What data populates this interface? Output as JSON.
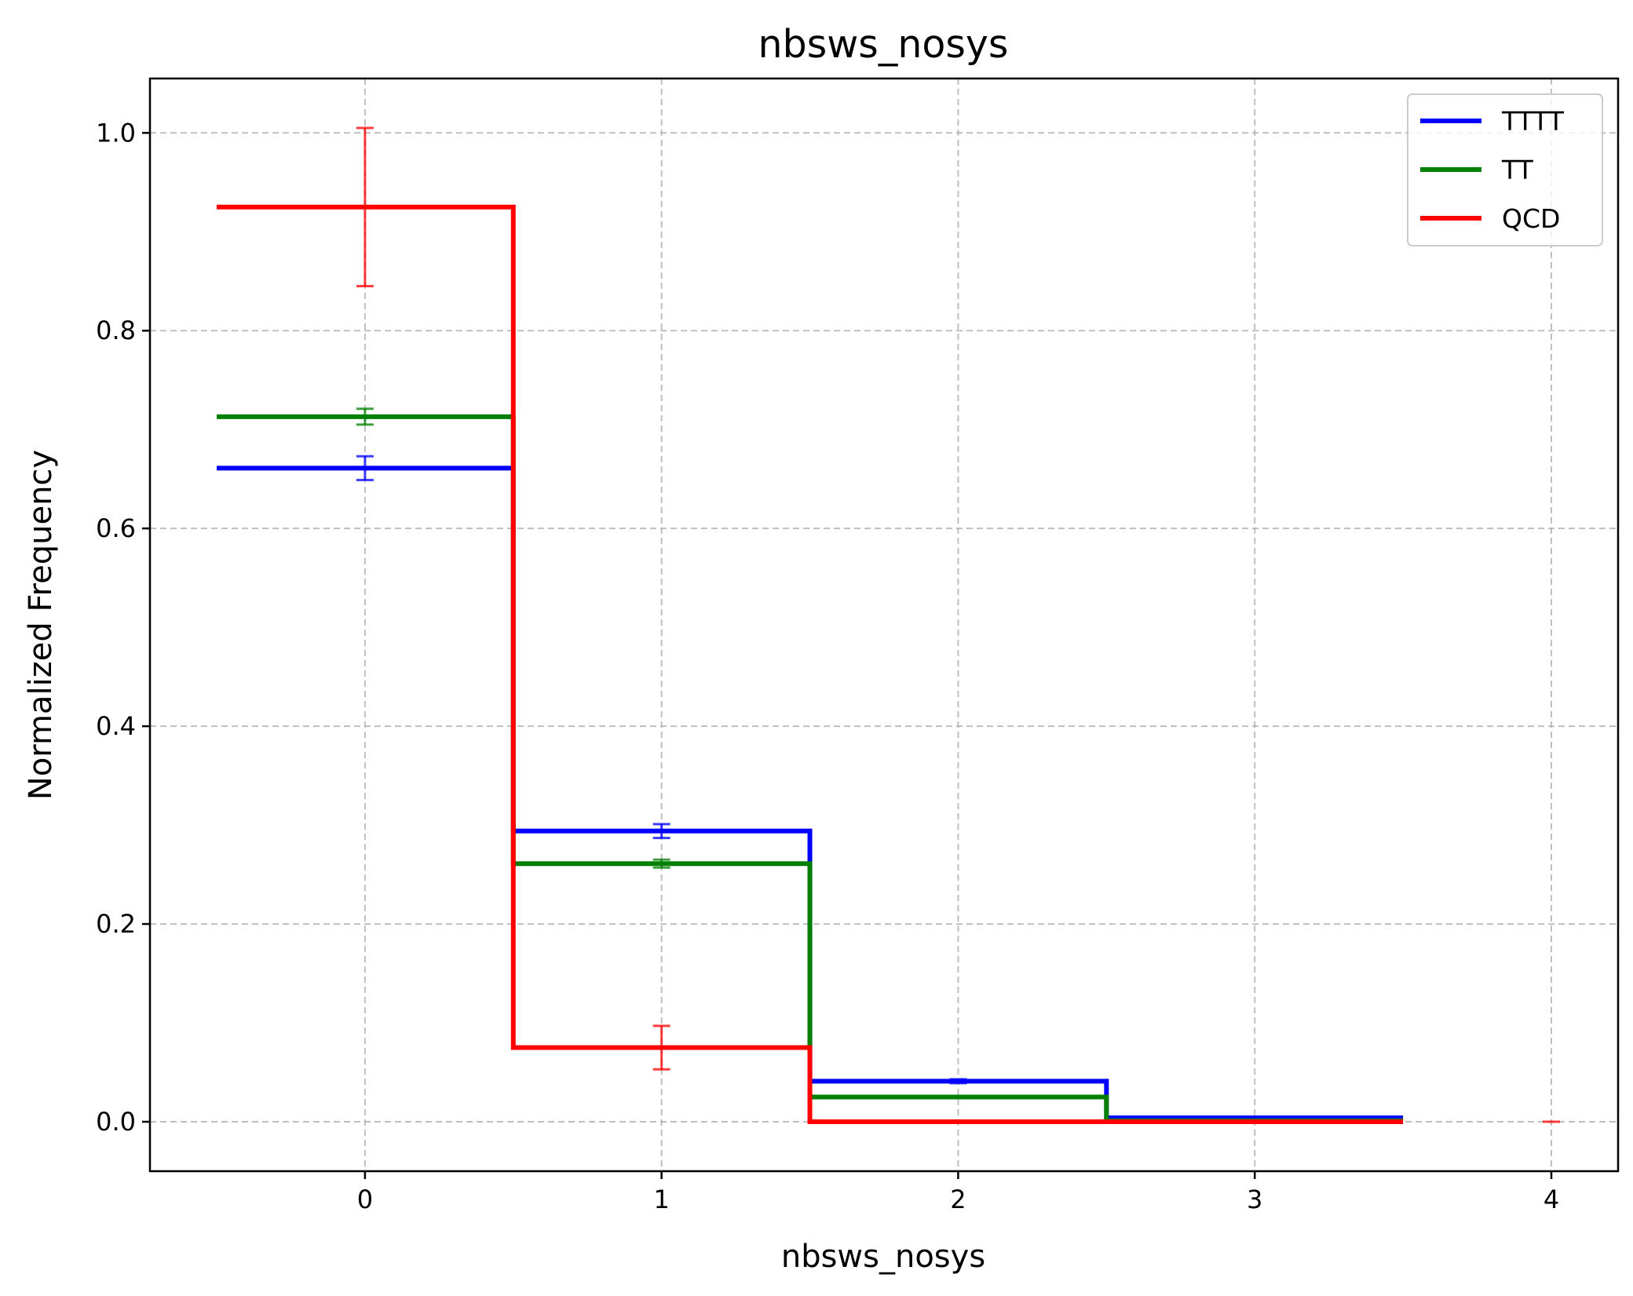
{
  "chart_data": {
    "type": "histogram-step",
    "title": "nbsws_nosys",
    "xlabel": "nbsws_nosys",
    "ylabel": "Normalized Frequency",
    "xlim": [
      -0.725,
      4.225
    ],
    "ylim": [
      -0.05,
      1.055
    ],
    "xticks": [
      0,
      1,
      2,
      3,
      4
    ],
    "xtick_labels": [
      "0",
      "1",
      "2",
      "3",
      "4"
    ],
    "yticks": [
      0.0,
      0.2,
      0.4,
      0.6,
      0.8,
      1.0
    ],
    "ytick_labels": [
      "0.0",
      "0.2",
      "0.4",
      "0.6",
      "0.8",
      "1.0"
    ],
    "grid": true,
    "legend_position": "top-right",
    "series": [
      {
        "name": "TTTT",
        "color": "#0000ff",
        "bin_edges": [
          -0.5,
          0.5,
          1.5,
          2.5,
          3.5
        ],
        "values": [
          0.661,
          0.294,
          0.041,
          0.004
        ],
        "errorbars": [
          {
            "x": 0,
            "y": 0.661,
            "err": 0.012
          },
          {
            "x": 1,
            "y": 0.294,
            "err": 0.007
          },
          {
            "x": 2,
            "y": 0.041,
            "err": 0.002
          }
        ]
      },
      {
        "name": "TT",
        "color": "#008000",
        "bin_edges": [
          -0.5,
          0.5,
          1.5,
          2.5,
          3.5
        ],
        "values": [
          0.713,
          0.261,
          0.025,
          0.001
        ],
        "errorbars": [
          {
            "x": 0,
            "y": 0.713,
            "err": 0.008
          },
          {
            "x": 1,
            "y": 0.261,
            "err": 0.004
          }
        ]
      },
      {
        "name": "QCD",
        "color": "#ff0000",
        "bin_edges": [
          -0.5,
          0.5,
          1.5,
          2.5,
          3.5
        ],
        "values": [
          0.925,
          0.075,
          0.0,
          0.0
        ],
        "errorbars": [
          {
            "x": 0,
            "y": 0.925,
            "err": 0.08
          },
          {
            "x": 1,
            "y": 0.075,
            "err": 0.022
          },
          {
            "x": 4,
            "y": 0.0,
            "err": 0.0
          }
        ]
      }
    ]
  }
}
